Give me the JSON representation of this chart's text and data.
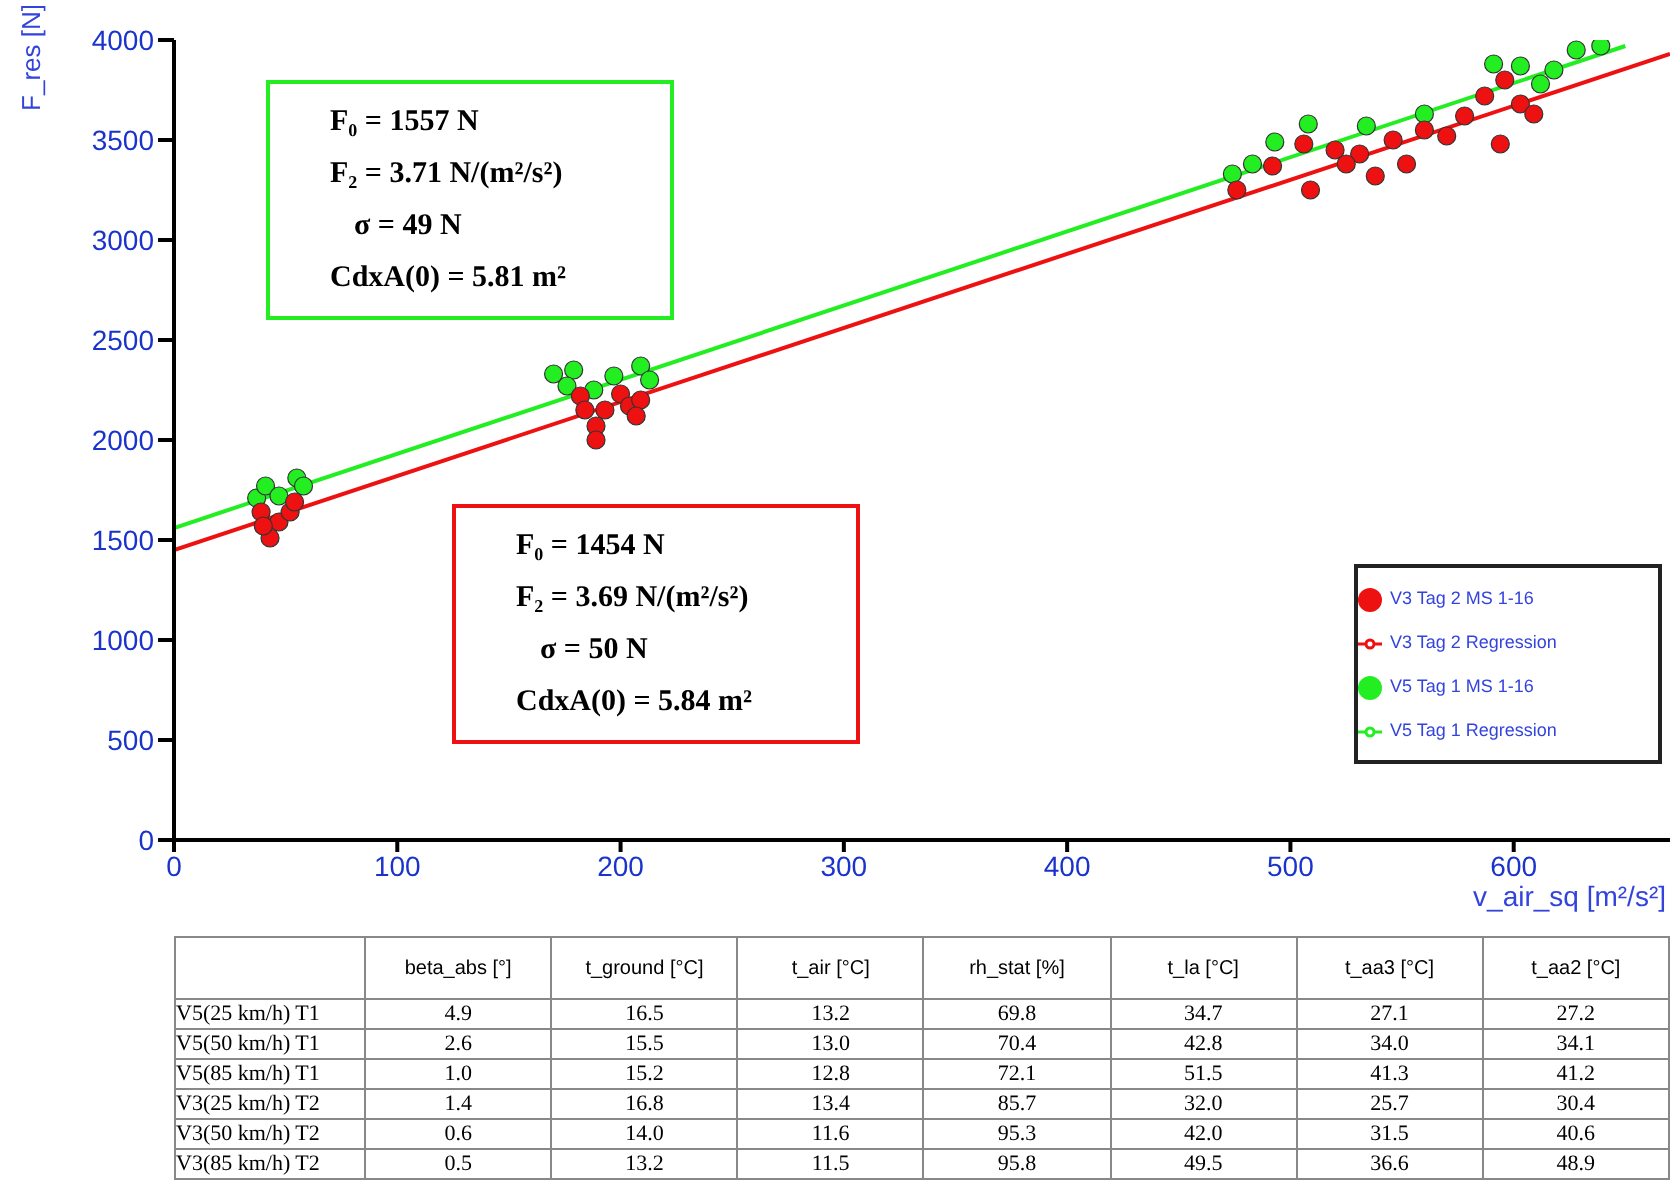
{
  "chart_data": {
    "type": "scatter",
    "xlabel": "v_air_sq [m²/s²]",
    "ylabel": "F_res [N]",
    "xlim": [
      0,
      670
    ],
    "xticks": [
      0,
      100,
      200,
      300,
      400,
      500,
      600
    ],
    "ylim": [
      0,
      4000
    ],
    "yticks": [
      0,
      500,
      1000,
      1500,
      2000,
      2500,
      3000,
      3500,
      4000
    ],
    "grid": false,
    "legend": "right",
    "series": [
      {
        "name": "V5 Tag 1 Regression",
        "type": "line",
        "marker": "none",
        "line_style": "solid",
        "color": "#22ee22",
        "x": [
          0,
          650
        ],
        "values": [
          1560,
          3970
        ]
      },
      {
        "name": "V5 Tag 1 MS 1-16",
        "marker": "circle",
        "color": "#22ee22",
        "x": [
          37,
          41,
          55,
          58,
          47,
          170,
          179,
          176,
          188,
          197,
          209,
          213,
          474,
          483,
          493,
          508,
          534,
          560,
          591,
          603,
          612,
          618,
          628,
          639
        ],
        "values": [
          1710,
          1770,
          1810,
          1770,
          1720,
          2330,
          2350,
          2270,
          2250,
          2320,
          2370,
          2300,
          3330,
          3380,
          3490,
          3580,
          3570,
          3630,
          3880,
          3870,
          3780,
          3850,
          3950,
          3970
        ]
      },
      {
        "name": "V3 Tag 2 Regression",
        "type": "line",
        "marker": "none",
        "line_style": "solid",
        "color": "#ee1111",
        "x": [
          0,
          670
        ],
        "values": [
          1450,
          3930
        ]
      },
      {
        "name": "V3 Tag 2 MS 1-16",
        "marker": "circle",
        "color": "#ee1111",
        "x": [
          39,
          43,
          47,
          52,
          54,
          40,
          182,
          184,
          189,
          189,
          200,
          204,
          209,
          207,
          193,
          476,
          492,
          506,
          509,
          520,
          531,
          538,
          546,
          560,
          570,
          578,
          587,
          596,
          594,
          603,
          609,
          552,
          525
        ],
        "values": [
          1640,
          1510,
          1590,
          1640,
          1690,
          1570,
          2220,
          2150,
          2070,
          2000,
          2230,
          2170,
          2200,
          2120,
          2150,
          3250,
          3370,
          3480,
          3250,
          3450,
          3430,
          3320,
          3500,
          3550,
          3520,
          3620,
          3720,
          3800,
          3480,
          3680,
          3630,
          3380,
          3380
        ]
      }
    ],
    "annotations": [
      "F₀ = 1557 N",
      "F₂ = 3.71 N/(m²/s²)",
      "σ = 49 N",
      "CdxA(0) = 5.81 m²",
      "F₀ = 1454 N",
      "F₂ = 3.69 N/(m²/s²)",
      "σ = 50 N",
      "CdxA(0) = 5.84 m²",
      "beta_abs [°]",
      "t_ground [°C]",
      "t_air [°C]",
      "rh_stat [%]",
      "t_la [°C]",
      "t_aa3 [°C]",
      "t_aa2 [°C]",
      "V5(25 km/h) T1",
      "4.9",
      "16.5",
      "13.2",
      "69.8",
      "34.7",
      "27.1",
      "27.2",
      "V5(50 km/h) T1",
      "2.6",
      "15.5",
      "13.0",
      "70.4",
      "42.8",
      "34.0",
      "34.1",
      "V5(85 km/h) T1",
      "1.0",
      "15.2",
      "12.8",
      "72.1",
      "51.5",
      "41.3",
      "41.2",
      "V3(25 km/h) T2",
      "1.4",
      "16.8",
      "13.4",
      "85.7",
      "32.0",
      "25.7",
      "30.4",
      "V3(50 km/h) T2",
      "0.6",
      "14.0",
      "11.6",
      "95.3",
      "42.0",
      "31.5",
      "40.6",
      "V3(85 km/h) T2",
      "0.5",
      "13.2",
      "11.5",
      "95.8",
      "49.5",
      "36.6",
      "48.9"
    ]
  }
}
